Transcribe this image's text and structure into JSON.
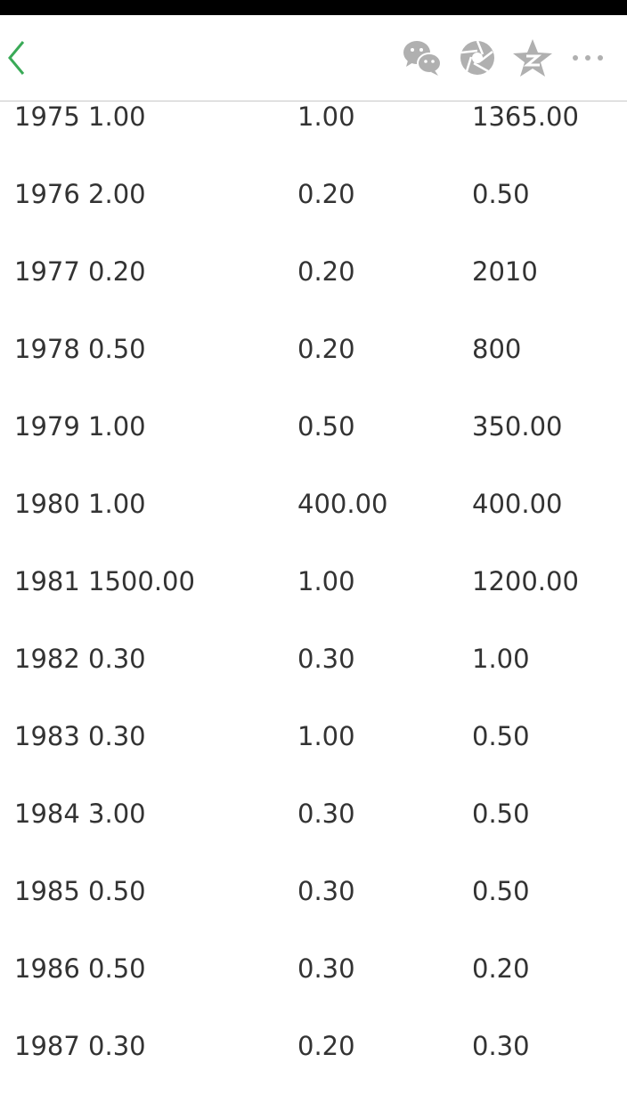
{
  "header": {
    "accent": "#3aaa57",
    "icon_color": "#b0b0b0",
    "icons": [
      "back-chevron-icon",
      "wechat-icon",
      "moments-aperture-icon",
      "qzone-star-icon",
      "more-icon"
    ]
  },
  "rows": [
    [
      "1975 1.00",
      "1.00",
      "1365.00"
    ],
    [
      "1976 2.00",
      "0.20",
      "0.50"
    ],
    [
      "1977 0.20",
      "0.20",
      "2010"
    ],
    [
      "1978 0.50",
      "0.20",
      "800"
    ],
    [
      "1979 1.00",
      "0.50",
      "350.00"
    ],
    [
      "1980 1.00",
      "400.00",
      "400.00"
    ],
    [
      "1981 1500.00",
      "1.00",
      "1200.00"
    ],
    [
      "1982 0.30",
      "0.30",
      "1.00"
    ],
    [
      "1983 0.30",
      "1.00",
      "0.50"
    ],
    [
      "1984 3.00",
      "0.30",
      "0.50"
    ],
    [
      "1985 0.50",
      "0.30",
      "0.50"
    ],
    [
      "1986 0.50",
      "0.30",
      "0.20"
    ],
    [
      "1987 0.30",
      "0.20",
      "0.30"
    ]
  ]
}
